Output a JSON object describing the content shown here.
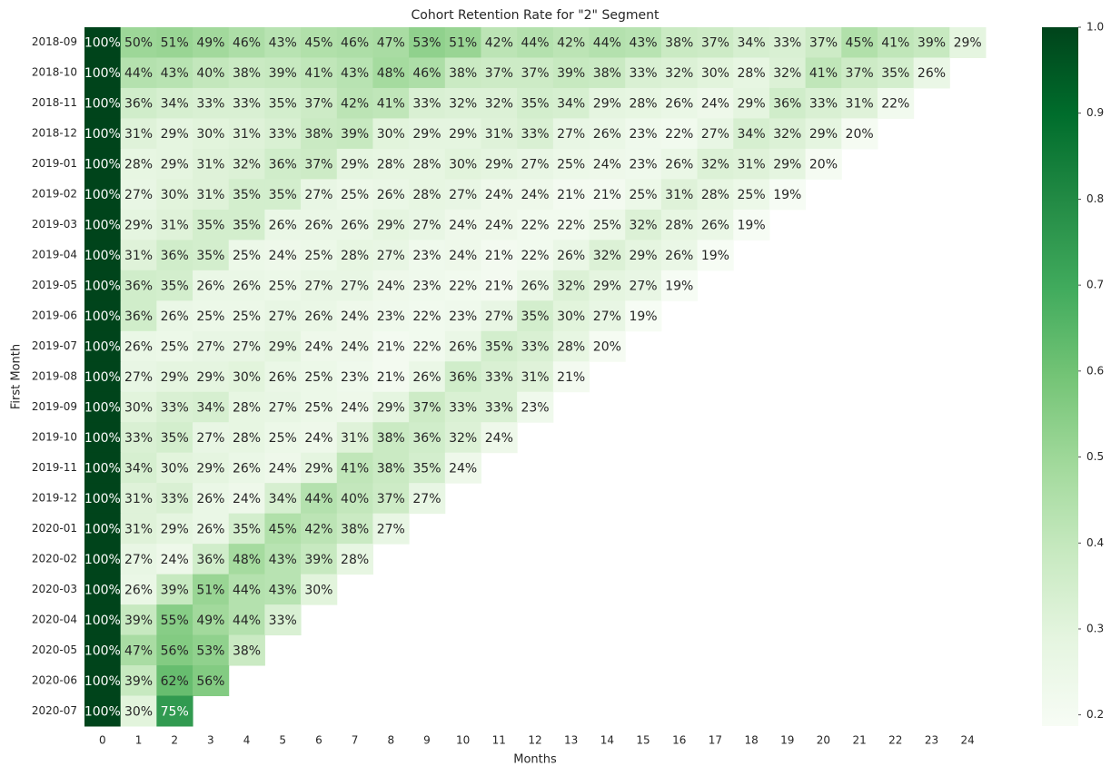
{
  "chart_data": {
    "type": "heatmap",
    "title": "Cohort Retention Rate for \"2\" Segment",
    "xlabel": "Months",
    "ylabel": "First Month",
    "columns": [
      0,
      1,
      2,
      3,
      4,
      5,
      6,
      7,
      8,
      9,
      10,
      11,
      12,
      13,
      14,
      15,
      16,
      17,
      18,
      19,
      20,
      21,
      22,
      23,
      24
    ],
    "rows": [
      "2018-09",
      "2018-10",
      "2018-11",
      "2018-12",
      "2019-01",
      "2019-02",
      "2019-03",
      "2019-04",
      "2019-05",
      "2019-06",
      "2019-07",
      "2019-08",
      "2019-09",
      "2019-10",
      "2019-11",
      "2019-12",
      "2020-01",
      "2020-02",
      "2020-03",
      "2020-04",
      "2020-05",
      "2020-06",
      "2020-07"
    ],
    "values": [
      [
        1,
        0.5,
        0.51,
        0.49,
        0.46,
        0.43,
        0.45,
        0.46,
        0.47,
        0.53,
        0.51,
        0.42,
        0.44,
        0.42,
        0.44,
        0.43,
        0.38,
        0.37,
        0.34,
        0.33,
        0.37,
        0.45,
        0.41,
        0.39,
        0.29
      ],
      [
        1,
        0.44,
        0.43,
        0.4,
        0.38,
        0.39,
        0.41,
        0.43,
        0.48,
        0.46,
        0.38,
        0.37,
        0.37,
        0.39,
        0.38,
        0.33,
        0.32,
        0.3,
        0.28,
        0.32,
        0.41,
        0.37,
        0.35,
        0.26,
        null
      ],
      [
        1,
        0.36,
        0.34,
        0.33,
        0.33,
        0.35,
        0.37,
        0.42,
        0.41,
        0.33,
        0.32,
        0.32,
        0.35,
        0.34,
        0.29,
        0.28,
        0.26,
        0.24,
        0.29,
        0.36,
        0.33,
        0.31,
        0.22,
        null,
        null
      ],
      [
        1,
        0.31,
        0.29,
        0.3,
        0.31,
        0.33,
        0.38,
        0.39,
        0.3,
        0.29,
        0.29,
        0.31,
        0.33,
        0.27,
        0.26,
        0.23,
        0.22,
        0.27,
        0.34,
        0.32,
        0.29,
        0.2,
        null,
        null,
        null
      ],
      [
        1,
        0.28,
        0.29,
        0.31,
        0.32,
        0.36,
        0.37,
        0.29,
        0.28,
        0.28,
        0.3,
        0.29,
        0.27,
        0.25,
        0.24,
        0.23,
        0.26,
        0.32,
        0.31,
        0.29,
        0.2,
        null,
        null,
        null,
        null
      ],
      [
        1,
        0.27,
        0.3,
        0.31,
        0.35,
        0.35,
        0.27,
        0.25,
        0.26,
        0.28,
        0.27,
        0.24,
        0.24,
        0.21,
        0.21,
        0.25,
        0.31,
        0.28,
        0.25,
        0.19,
        null,
        null,
        null,
        null,
        null
      ],
      [
        1,
        0.29,
        0.31,
        0.35,
        0.35,
        0.26,
        0.26,
        0.26,
        0.29,
        0.27,
        0.24,
        0.24,
        0.22,
        0.22,
        0.25,
        0.32,
        0.28,
        0.26,
        0.19,
        null,
        null,
        null,
        null,
        null,
        null
      ],
      [
        1,
        0.31,
        0.36,
        0.35,
        0.25,
        0.24,
        0.25,
        0.28,
        0.27,
        0.23,
        0.24,
        0.21,
        0.22,
        0.26,
        0.32,
        0.29,
        0.26,
        0.19,
        null,
        null,
        null,
        null,
        null,
        null,
        null
      ],
      [
        1,
        0.36,
        0.35,
        0.26,
        0.26,
        0.25,
        0.27,
        0.27,
        0.24,
        0.23,
        0.22,
        0.21,
        0.26,
        0.32,
        0.29,
        0.27,
        0.19,
        null,
        null,
        null,
        null,
        null,
        null,
        null,
        null
      ],
      [
        1,
        0.36,
        0.26,
        0.25,
        0.25,
        0.27,
        0.26,
        0.24,
        0.23,
        0.22,
        0.23,
        0.27,
        0.35,
        0.3,
        0.27,
        0.19,
        null,
        null,
        null,
        null,
        null,
        null,
        null,
        null,
        null
      ],
      [
        1,
        0.26,
        0.25,
        0.27,
        0.27,
        0.29,
        0.24,
        0.24,
        0.21,
        0.22,
        0.26,
        0.35,
        0.33,
        0.28,
        0.2,
        null,
        null,
        null,
        null,
        null,
        null,
        null,
        null,
        null,
        null
      ],
      [
        1,
        0.27,
        0.29,
        0.29,
        0.3,
        0.26,
        0.25,
        0.23,
        0.21,
        0.26,
        0.36,
        0.33,
        0.31,
        0.21,
        null,
        null,
        null,
        null,
        null,
        null,
        null,
        null,
        null,
        null,
        null
      ],
      [
        1,
        0.3,
        0.33,
        0.34,
        0.28,
        0.27,
        0.25,
        0.24,
        0.29,
        0.37,
        0.33,
        0.33,
        0.23,
        null,
        null,
        null,
        null,
        null,
        null,
        null,
        null,
        null,
        null,
        null,
        null
      ],
      [
        1,
        0.33,
        0.35,
        0.27,
        0.28,
        0.25,
        0.24,
        0.31,
        0.38,
        0.36,
        0.32,
        0.24,
        null,
        null,
        null,
        null,
        null,
        null,
        null,
        null,
        null,
        null,
        null,
        null,
        null
      ],
      [
        1,
        0.34,
        0.3,
        0.29,
        0.26,
        0.24,
        0.29,
        0.41,
        0.38,
        0.35,
        0.24,
        null,
        null,
        null,
        null,
        null,
        null,
        null,
        null,
        null,
        null,
        null,
        null,
        null,
        null
      ],
      [
        1,
        0.31,
        0.33,
        0.26,
        0.24,
        0.34,
        0.44,
        0.4,
        0.37,
        0.27,
        null,
        null,
        null,
        null,
        null,
        null,
        null,
        null,
        null,
        null,
        null,
        null,
        null,
        null,
        null
      ],
      [
        1,
        0.31,
        0.29,
        0.26,
        0.35,
        0.45,
        0.42,
        0.38,
        0.27,
        null,
        null,
        null,
        null,
        null,
        null,
        null,
        null,
        null,
        null,
        null,
        null,
        null,
        null,
        null,
        null
      ],
      [
        1,
        0.27,
        0.24,
        0.36,
        0.48,
        0.43,
        0.39,
        0.28,
        null,
        null,
        null,
        null,
        null,
        null,
        null,
        null,
        null,
        null,
        null,
        null,
        null,
        null,
        null,
        null,
        null
      ],
      [
        1,
        0.26,
        0.39,
        0.51,
        0.44,
        0.43,
        0.3,
        null,
        null,
        null,
        null,
        null,
        null,
        null,
        null,
        null,
        null,
        null,
        null,
        null,
        null,
        null,
        null,
        null,
        null
      ],
      [
        1,
        0.39,
        0.55,
        0.49,
        0.44,
        0.33,
        null,
        null,
        null,
        null,
        null,
        null,
        null,
        null,
        null,
        null,
        null,
        null,
        null,
        null,
        null,
        null,
        null,
        null,
        null
      ],
      [
        1,
        0.47,
        0.56,
        0.53,
        0.38,
        null,
        null,
        null,
        null,
        null,
        null,
        null,
        null,
        null,
        null,
        null,
        null,
        null,
        null,
        null,
        null,
        null,
        null,
        null,
        null
      ],
      [
        1,
        0.39,
        0.62,
        0.56,
        null,
        null,
        null,
        null,
        null,
        null,
        null,
        null,
        null,
        null,
        null,
        null,
        null,
        null,
        null,
        null,
        null,
        null,
        null,
        null,
        null
      ],
      [
        1,
        0.3,
        0.75,
        null,
        null,
        null,
        null,
        null,
        null,
        null,
        null,
        null,
        null,
        null,
        null,
        null,
        null,
        null,
        null,
        null,
        null,
        null,
        null,
        null,
        null
      ]
    ],
    "value_labels": [
      [
        "100%",
        "50%",
        "51%",
        "49%",
        "46%",
        "43%",
        "45%",
        "46%",
        "47%",
        "53%",
        "51%",
        "42%",
        "44%",
        "42%",
        "44%",
        "43%",
        "38%",
        "37%",
        "34%",
        "33%",
        "37%",
        "45%",
        "41%",
        "39%",
        "29%"
      ],
      [
        "100%",
        "44%",
        "43%",
        "40%",
        "38%",
        "39%",
        "41%",
        "43%",
        "48%",
        "46%",
        "38%",
        "37%",
        "37%",
        "39%",
        "38%",
        "33%",
        "32%",
        "30%",
        "28%",
        "32%",
        "41%",
        "37%",
        "35%",
        "26%",
        null
      ],
      [
        "100%",
        "36%",
        "34%",
        "33%",
        "33%",
        "35%",
        "37%",
        "42%",
        "41%",
        "33%",
        "32%",
        "32%",
        "35%",
        "34%",
        "29%",
        "28%",
        "26%",
        "24%",
        "29%",
        "36%",
        "33%",
        "31%",
        "22%",
        null,
        null
      ],
      [
        "100%",
        "31%",
        "29%",
        "30%",
        "31%",
        "33%",
        "38%",
        "39%",
        "30%",
        "29%",
        "29%",
        "31%",
        "33%",
        "27%",
        "26%",
        "23%",
        "22%",
        "27%",
        "34%",
        "32%",
        "29%",
        "20%",
        null,
        null,
        null
      ],
      [
        "100%",
        "28%",
        "29%",
        "31%",
        "32%",
        "36%",
        "37%",
        "29%",
        "28%",
        "28%",
        "30%",
        "29%",
        "27%",
        "25%",
        "24%",
        "23%",
        "26%",
        "32%",
        "31%",
        "29%",
        "20%",
        null,
        null,
        null,
        null
      ],
      [
        "100%",
        "27%",
        "30%",
        "31%",
        "35%",
        "35%",
        "27%",
        "25%",
        "26%",
        "28%",
        "27%",
        "24%",
        "24%",
        "21%",
        "21%",
        "25%",
        "31%",
        "28%",
        "25%",
        "19%",
        null,
        null,
        null,
        null,
        null
      ],
      [
        "100%",
        "29%",
        "31%",
        "35%",
        "35%",
        "26%",
        "26%",
        "26%",
        "29%",
        "27%",
        "24%",
        "24%",
        "22%",
        "22%",
        "25%",
        "32%",
        "28%",
        "26%",
        "19%",
        null,
        null,
        null,
        null,
        null,
        null
      ],
      [
        "100%",
        "31%",
        "36%",
        "35%",
        "25%",
        "24%",
        "25%",
        "28%",
        "27%",
        "23%",
        "24%",
        "21%",
        "22%",
        "26%",
        "32%",
        "29%",
        "26%",
        "19%",
        null,
        null,
        null,
        null,
        null,
        null,
        null
      ],
      [
        "100%",
        "36%",
        "35%",
        "26%",
        "26%",
        "25%",
        "27%",
        "27%",
        "24%",
        "23%",
        "22%",
        "21%",
        "26%",
        "32%",
        "29%",
        "27%",
        "19%",
        null,
        null,
        null,
        null,
        null,
        null,
        null,
        null
      ],
      [
        "100%",
        "36%",
        "26%",
        "25%",
        "25%",
        "27%",
        "26%",
        "24%",
        "23%",
        "22%",
        "23%",
        "27%",
        "35%",
        "30%",
        "27%",
        "19%",
        null,
        null,
        null,
        null,
        null,
        null,
        null,
        null,
        null
      ],
      [
        "100%",
        "26%",
        "25%",
        "27%",
        "27%",
        "29%",
        "24%",
        "24%",
        "21%",
        "22%",
        "26%",
        "35%",
        "33%",
        "28%",
        "20%",
        null,
        null,
        null,
        null,
        null,
        null,
        null,
        null,
        null,
        null
      ],
      [
        "100%",
        "27%",
        "29%",
        "29%",
        "30%",
        "26%",
        "25%",
        "23%",
        "21%",
        "26%",
        "36%",
        "33%",
        "31%",
        "21%",
        null,
        null,
        null,
        null,
        null,
        null,
        null,
        null,
        null,
        null,
        null
      ],
      [
        "100%",
        "30%",
        "33%",
        "34%",
        "28%",
        "27%",
        "25%",
        "24%",
        "29%",
        "37%",
        "33%",
        "33%",
        "23%",
        null,
        null,
        null,
        null,
        null,
        null,
        null,
        null,
        null,
        null,
        null,
        null
      ],
      [
        "100%",
        "33%",
        "35%",
        "27%",
        "28%",
        "25%",
        "24%",
        "31%",
        "38%",
        "36%",
        "32%",
        "24%",
        null,
        null,
        null,
        null,
        null,
        null,
        null,
        null,
        null,
        null,
        null,
        null,
        null
      ],
      [
        "100%",
        "34%",
        "30%",
        "29%",
        "26%",
        "24%",
        "29%",
        "41%",
        "38%",
        "35%",
        "24%",
        null,
        null,
        null,
        null,
        null,
        null,
        null,
        null,
        null,
        null,
        null,
        null,
        null,
        null
      ],
      [
        "100%",
        "31%",
        "33%",
        "26%",
        "24%",
        "34%",
        "44%",
        "40%",
        "37%",
        "27%",
        null,
        null,
        null,
        null,
        null,
        null,
        null,
        null,
        null,
        null,
        null,
        null,
        null,
        null,
        null
      ],
      [
        "100%",
        "31%",
        "29%",
        "26%",
        "35%",
        "45%",
        "42%",
        "38%",
        "27%",
        null,
        null,
        null,
        null,
        null,
        null,
        null,
        null,
        null,
        null,
        null,
        null,
        null,
        null,
        null,
        null
      ],
      [
        "100%",
        "27%",
        "24%",
        "36%",
        "48%",
        "43%",
        "39%",
        "28%",
        null,
        null,
        null,
        null,
        null,
        null,
        null,
        null,
        null,
        null,
        null,
        null,
        null,
        null,
        null,
        null,
        null
      ],
      [
        "100%",
        "26%",
        "39%",
        "51%",
        "44%",
        "43%",
        "30%",
        null,
        null,
        null,
        null,
        null,
        null,
        null,
        null,
        null,
        null,
        null,
        null,
        null,
        null,
        null,
        null,
        null,
        null
      ],
      [
        "100%",
        "39%",
        "55%",
        "49%",
        "44%",
        "33%",
        null,
        null,
        null,
        null,
        null,
        null,
        null,
        null,
        null,
        null,
        null,
        null,
        null,
        null,
        null,
        null,
        null,
        null,
        null
      ],
      [
        "100%",
        "47%",
        "56%",
        "53%",
        "38%",
        null,
        null,
        null,
        null,
        null,
        null,
        null,
        null,
        null,
        null,
        null,
        null,
        null,
        null,
        null,
        null,
        null,
        null,
        null,
        null
      ],
      [
        "100%",
        "39%",
        "62%",
        "56%",
        null,
        null,
        null,
        null,
        null,
        null,
        null,
        null,
        null,
        null,
        null,
        null,
        null,
        null,
        null,
        null,
        null,
        null,
        null,
        null,
        null
      ],
      [
        "100%",
        "30%",
        "75%",
        null,
        null,
        null,
        null,
        null,
        null,
        null,
        null,
        null,
        null,
        null,
        null,
        null,
        null,
        null,
        null,
        null,
        null,
        null,
        null,
        null,
        null
      ]
    ],
    "zlim": [
      0.187,
      1.0
    ],
    "zticks": [
      0.2,
      0.3,
      0.4,
      0.5,
      0.6,
      0.7,
      0.8,
      0.9,
      {
        "value": 1,
        "label": "1.0"
      }
    ],
    "colormap": [
      "#f7fcf5",
      "#e5f5e0",
      "#c7e9c0",
      "#a1d99b",
      "#74c476",
      "#41ab5d",
      "#238b45",
      "#006d2c",
      "#00441b"
    ]
  }
}
